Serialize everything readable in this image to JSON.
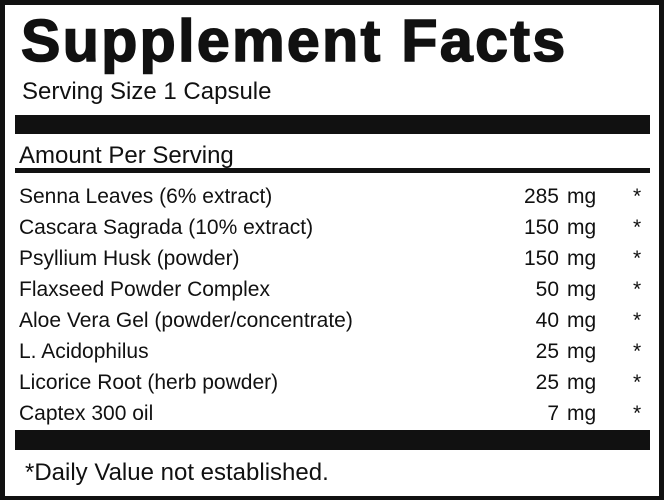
{
  "title": "Supplement Facts",
  "serving_size": "Serving Size 1 Capsule",
  "amount_header": "Amount Per Serving",
  "ingredients": [
    {
      "name": "Senna Leaves (6% extract)",
      "amount": "285",
      "unit": "mg",
      "dv": "*"
    },
    {
      "name": "Cascara Sagrada (10% extract)",
      "amount": "150",
      "unit": "mg",
      "dv": "*"
    },
    {
      "name": "Psyllium Husk (powder)",
      "amount": "150",
      "unit": "mg",
      "dv": "*"
    },
    {
      "name": "Flaxseed Powder Complex",
      "amount": "50",
      "unit": "mg",
      "dv": "*"
    },
    {
      "name": "Aloe Vera Gel (powder/concentrate)",
      "amount": "40",
      "unit": "mg",
      "dv": "*"
    },
    {
      "name": "L. Acidophilus",
      "amount": "25",
      "unit": "mg",
      "dv": "*"
    },
    {
      "name": "Licorice Root (herb powder)",
      "amount": "25",
      "unit": "mg",
      "dv": "*"
    },
    {
      "name": "Captex 300 oil",
      "amount": "7",
      "unit": "mg",
      "dv": "*"
    }
  ],
  "footnote": "*Daily Value not established."
}
